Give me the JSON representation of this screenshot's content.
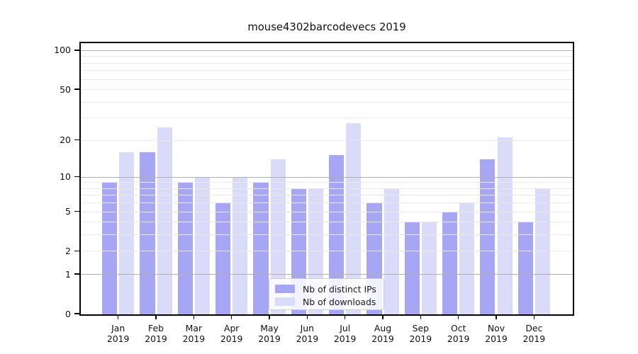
{
  "title": "mouse4302barcodevecs 2019",
  "legend": {
    "items": [
      {
        "label": "Nb of distinct IPs",
        "color": "#a6a6f5"
      },
      {
        "label": "Nb of downloads",
        "color": "#dadaf9"
      }
    ]
  },
  "colors": {
    "bar_distinct_ips": "#a6a6f5",
    "bar_downloads": "#dadaf9",
    "grid_major": "#b0b0b0",
    "grid_minor": "#e9e9e9",
    "axis": "#000000",
    "background": "#ffffff"
  },
  "chart_data": {
    "type": "bar",
    "title": "mouse4302barcodevecs 2019",
    "categories": [
      "Jan",
      "Feb",
      "Mar",
      "Apr",
      "May",
      "Jun",
      "Jul",
      "Aug",
      "Sep",
      "Oct",
      "Nov",
      "Dec"
    ],
    "year": "2019",
    "series": [
      {
        "name": "Nb of distinct IPs",
        "color": "#a6a6f5",
        "values": [
          9,
          16,
          9,
          6,
          9,
          8,
          15,
          6,
          4,
          5,
          14,
          4
        ]
      },
      {
        "name": "Nb of downloads",
        "color": "#dadaf9",
        "values": [
          16,
          25,
          10,
          10,
          14,
          8,
          27,
          8,
          4,
          6,
          21,
          8
        ]
      }
    ],
    "xlabel": "",
    "ylabel": "",
    "yscale": "log1p",
    "ylim": [
      0,
      116
    ],
    "yticks": [
      100,
      50,
      20,
      10,
      5,
      2,
      1,
      0
    ],
    "major_gridlines": [
      1,
      10,
      100
    ],
    "minor_gridlines": [
      2,
      3,
      4,
      5,
      6,
      7,
      8,
      9,
      20,
      30,
      40,
      50,
      60,
      70,
      80,
      90
    ],
    "grid": true,
    "legend_position": "lower center"
  }
}
